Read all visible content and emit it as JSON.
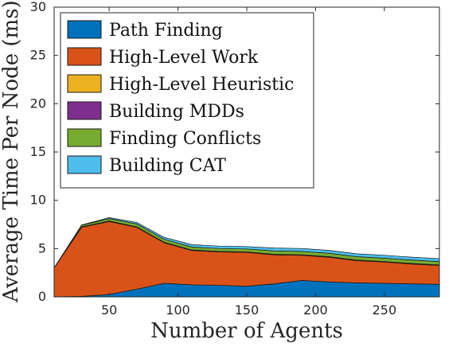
{
  "chart_data": {
    "type": "area",
    "stacked": true,
    "xlabel": "Number of Agents",
    "ylabel": "Average Time Per Node (ms)",
    "xlim": [
      10,
      290
    ],
    "ylim": [
      0,
      30
    ],
    "xticks": [
      50,
      100,
      150,
      200,
      250
    ],
    "yticks": [
      0,
      5,
      10,
      15,
      20,
      25,
      30
    ],
    "grid": false,
    "legend_position": "top-left",
    "x": [
      10,
      30,
      50,
      70,
      90,
      110,
      130,
      150,
      170,
      190,
      210,
      230,
      250,
      270,
      290
    ],
    "series": [
      {
        "name": "Path Finding",
        "color": "#0072bd",
        "values": [
          0.0,
          0.05,
          0.25,
          0.8,
          1.4,
          1.25,
          1.2,
          1.1,
          1.35,
          1.7,
          1.55,
          1.45,
          1.4,
          1.35,
          1.3
        ]
      },
      {
        "name": "High-Level Work",
        "color": "#d95319",
        "values": [
          3.0,
          7.15,
          7.55,
          6.4,
          4.2,
          3.55,
          3.45,
          3.5,
          3.0,
          2.6,
          2.55,
          2.3,
          2.2,
          2.05,
          1.95
        ]
      },
      {
        "name": "High-Level Heuristic",
        "color": "#edb120",
        "values": [
          0.0,
          0.03,
          0.03,
          0.03,
          0.03,
          0.03,
          0.03,
          0.03,
          0.03,
          0.03,
          0.03,
          0.03,
          0.03,
          0.03,
          0.03
        ]
      },
      {
        "name": "Building MDDs",
        "color": "#7e2f8e",
        "values": [
          0.0,
          0.03,
          0.03,
          0.03,
          0.03,
          0.03,
          0.03,
          0.03,
          0.03,
          0.03,
          0.03,
          0.03,
          0.03,
          0.03,
          0.03
        ]
      },
      {
        "name": "Finding Conflicts",
        "color": "#77ac30",
        "values": [
          0.0,
          0.15,
          0.25,
          0.3,
          0.3,
          0.3,
          0.3,
          0.3,
          0.35,
          0.35,
          0.35,
          0.35,
          0.35,
          0.35,
          0.35
        ]
      },
      {
        "name": "Building CAT",
        "color": "#4dbeee",
        "values": [
          0.0,
          0.04,
          0.1,
          0.15,
          0.2,
          0.25,
          0.25,
          0.25,
          0.3,
          0.3,
          0.3,
          0.3,
          0.3,
          0.3,
          0.3
        ]
      }
    ]
  }
}
